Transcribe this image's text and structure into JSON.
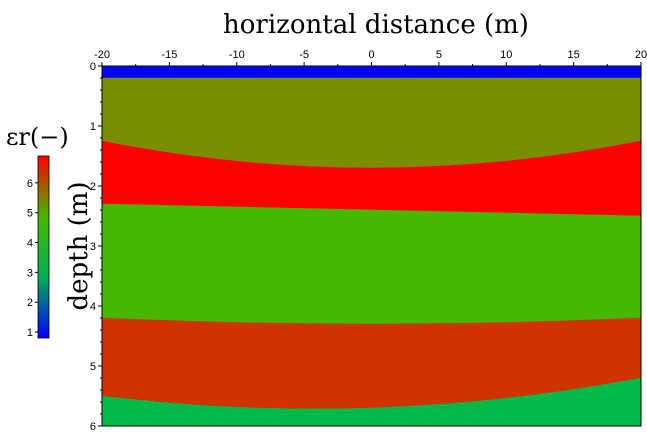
{
  "chart_data": {
    "type": "heatmap",
    "title": "horizontal distance (m)",
    "xlabel": "horizontal distance (m)",
    "ylabel": "depth (m)",
    "x_axis_position": "top",
    "xlim": [
      -20,
      20
    ],
    "ylim": [
      0,
      6
    ],
    "y_inverted": true,
    "x_ticks": [
      "-20",
      "-15",
      "-10",
      "-5",
      "0",
      "5",
      "10",
      "15",
      "20"
    ],
    "y_ticks": [
      "0",
      "1",
      "2",
      "3",
      "4",
      "5",
      "6"
    ],
    "layers": [
      {
        "epsilon_r": 1,
        "color": "#0000ff",
        "top": [
          [
            -20,
            0.0
          ],
          [
            20,
            0.0
          ]
        ],
        "bottom": [
          [
            -20,
            0.2
          ],
          [
            20,
            0.2
          ]
        ]
      },
      {
        "epsilon_r": 4.5,
        "color": "#798e00",
        "top": [
          [
            -20,
            0.2
          ],
          [
            20,
            0.2
          ]
        ],
        "bottom": [
          [
            -20,
            1.25
          ],
          [
            0,
            1.7
          ],
          [
            20,
            1.25
          ]
        ]
      },
      {
        "epsilon_r": 6.8,
        "color": "#ff0000",
        "top": [
          [
            -20,
            1.25
          ],
          [
            0,
            1.7
          ],
          [
            20,
            1.25
          ]
        ],
        "bottom": [
          [
            -20,
            2.3
          ],
          [
            20,
            2.5
          ]
        ]
      },
      {
        "epsilon_r": 3.7,
        "color": "#45b800",
        "top": [
          [
            -20,
            2.3
          ],
          [
            20,
            2.5
          ]
        ],
        "bottom": [
          [
            -20,
            4.2
          ],
          [
            0,
            4.3
          ],
          [
            20,
            4.2
          ]
        ]
      },
      {
        "epsilon_r": 5.9,
        "color": "#d13300",
        "top": [
          [
            -20,
            4.2
          ],
          [
            0,
            4.3
          ],
          [
            20,
            4.2
          ]
        ],
        "bottom": [
          [
            -20,
            5.5
          ],
          [
            0,
            5.7
          ],
          [
            20,
            5.2
          ]
        ]
      },
      {
        "epsilon_r": 3.2,
        "color": "#00b948",
        "top": [
          [
            -20,
            5.5
          ],
          [
            0,
            5.7
          ],
          [
            20,
            5.2
          ]
        ],
        "bottom": [
          [
            -20,
            6.0
          ],
          [
            20,
            6.0
          ]
        ]
      }
    ],
    "colorbar": {
      "title": "εr(−)",
      "range": [
        0.8,
        6.9
      ],
      "ticks": [
        "1",
        "2",
        "3",
        "4",
        "5",
        "6"
      ],
      "gradient": [
        "#0000ff",
        "#00b050",
        "#45b800",
        "#ff0000"
      ]
    }
  }
}
